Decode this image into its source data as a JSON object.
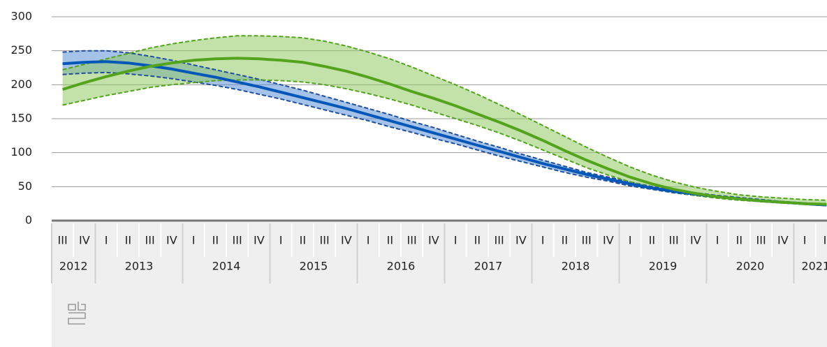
{
  "chart_data": {
    "type": "line",
    "categories": [
      "III",
      "IV",
      "I",
      "II",
      "III",
      "IV",
      "I",
      "II",
      "III",
      "IV",
      "I",
      "II",
      "III",
      "IV",
      "I",
      "II",
      "III",
      "IV",
      "I",
      "II",
      "III",
      "IV",
      "I",
      "II",
      "III",
      "IV",
      "I",
      "II",
      "III",
      "IV",
      "I",
      "II",
      "III",
      "IV",
      "I",
      "II"
    ],
    "x_groups": [
      "2012",
      "2013",
      "2014",
      "2015",
      "2016",
      "2017",
      "2018",
      "2019",
      "2020",
      "2021"
    ],
    "ylim": [
      0,
      300
    ],
    "yticks": [
      0,
      50,
      100,
      150,
      200,
      250,
      300
    ],
    "grid": true,
    "series": [
      {
        "color": "#0057b8",
        "band_color": "#5b8fd6",
        "bound_color": "#1f4e9c",
        "values": [
          231,
          233,
          234,
          232,
          228,
          223,
          217,
          211,
          204,
          197,
          189,
          181,
          173,
          165,
          156,
          147,
          138,
          129,
          120,
          111,
          102,
          93,
          84,
          76,
          68,
          61,
          54,
          48,
          43,
          39,
          35,
          32,
          29,
          27,
          25,
          23
        ],
        "upper": [
          248,
          250,
          250,
          247,
          242,
          236,
          229,
          222,
          215,
          208,
          200,
          192,
          183,
          174,
          165,
          156,
          146,
          137,
          127,
          117,
          108,
          98,
          89,
          80,
          71,
          64,
          57,
          50,
          45,
          41,
          37,
          34,
          31,
          28,
          26,
          24
        ],
        "lower": [
          215,
          217,
          218,
          216,
          213,
          209,
          204,
          199,
          193,
          186,
          179,
          171,
          163,
          155,
          147,
          138,
          130,
          121,
          113,
          104,
          95,
          87,
          79,
          71,
          64,
          58,
          51,
          46,
          41,
          37,
          34,
          31,
          28,
          26,
          24,
          22
        ]
      },
      {
        "color": "#53a31d",
        "band_color": "#8fcb64",
        "bound_color": "#53a31d",
        "values": [
          193,
          203,
          212,
          220,
          227,
          232,
          236,
          238,
          239,
          238,
          236,
          233,
          227,
          220,
          211,
          201,
          190,
          180,
          169,
          157,
          145,
          132,
          118,
          103,
          89,
          76,
          64,
          54,
          46,
          40,
          35,
          32,
          29,
          27,
          25,
          24
        ],
        "upper": [
          222,
          230,
          238,
          246,
          254,
          260,
          265,
          269,
          272,
          272,
          271,
          269,
          264,
          257,
          248,
          238,
          226,
          213,
          200,
          186,
          171,
          156,
          140,
          124,
          108,
          93,
          79,
          67,
          57,
          49,
          43,
          38,
          35,
          33,
          31,
          30
        ],
        "lower": [
          170,
          177,
          184,
          190,
          196,
          200,
          203,
          206,
          207,
          207,
          206,
          204,
          200,
          194,
          187,
          179,
          170,
          160,
          150,
          140,
          129,
          117,
          104,
          91,
          78,
          67,
          57,
          49,
          42,
          37,
          33,
          30,
          28,
          26,
          24,
          22
        ]
      }
    ]
  }
}
